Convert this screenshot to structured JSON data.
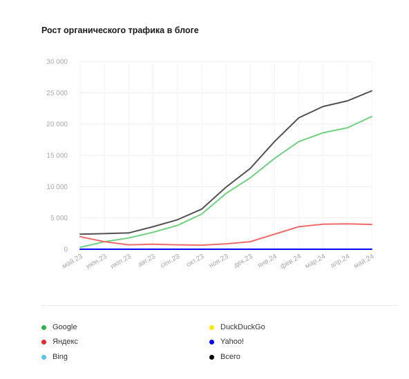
{
  "chart_data": {
    "type": "line",
    "title": "Рост органического трафика в блоге",
    "x": [
      "май.23",
      "июн.23",
      "июл.23",
      "авг.23",
      "сен.23",
      "окт.23",
      "ноя.23",
      "дек.23",
      "янв.24",
      "фев.24",
      "мар.24",
      "апр.24",
      "май.24"
    ],
    "ylim": [
      0,
      30000
    ],
    "yticks": [
      "0",
      "5 000",
      "10 000",
      "15 000",
      "20 000",
      "25 000",
      "30 000"
    ],
    "grid": true,
    "legend": "bottom",
    "series": [
      {
        "name": "Google",
        "color": "#6fd07f",
        "values": [
          300,
          1200,
          1800,
          2700,
          3800,
          5600,
          8900,
          11400,
          14500,
          17200,
          18600,
          19400,
          21200
        ]
      },
      {
        "name": "Яндекс",
        "color": "#f06a6a",
        "values": [
          2000,
          1200,
          700,
          800,
          700,
          650,
          850,
          1200,
          2400,
          3600,
          4000,
          4050,
          3950
        ]
      },
      {
        "name": "Bing",
        "color": "#7fd3d6",
        "values": [
          0,
          0,
          0,
          0,
          0,
          0,
          0,
          0,
          0,
          0,
          0,
          0,
          0
        ]
      },
      {
        "name": "DuckDuckGo",
        "color": "#ffe600",
        "values": [
          0,
          0,
          0,
          0,
          0,
          0,
          0,
          0,
          0,
          0,
          0,
          0,
          0
        ]
      },
      {
        "name": "Yahoo!",
        "color": "#0000ff",
        "values": [
          0,
          0,
          0,
          0,
          0,
          0,
          0,
          0,
          0,
          0,
          0,
          0,
          0
        ]
      },
      {
        "name": "Всего",
        "color": "#505050",
        "values": [
          2400,
          2500,
          2600,
          3600,
          4700,
          6400,
          9900,
          12900,
          17200,
          21000,
          22800,
          23700,
          25300
        ]
      }
    ]
  },
  "legend_items": [
    {
      "label": "Google",
      "color": "#2db34a"
    },
    {
      "label": "Яндекс",
      "color": "#e8262b"
    },
    {
      "label": "Bing",
      "color": "#5bc3e6"
    },
    {
      "label": "DuckDuckGo",
      "color": "#ffe600"
    },
    {
      "label": "Yahoo!",
      "color": "#0000ff"
    },
    {
      "label": "Всего",
      "color": "#000000"
    }
  ]
}
